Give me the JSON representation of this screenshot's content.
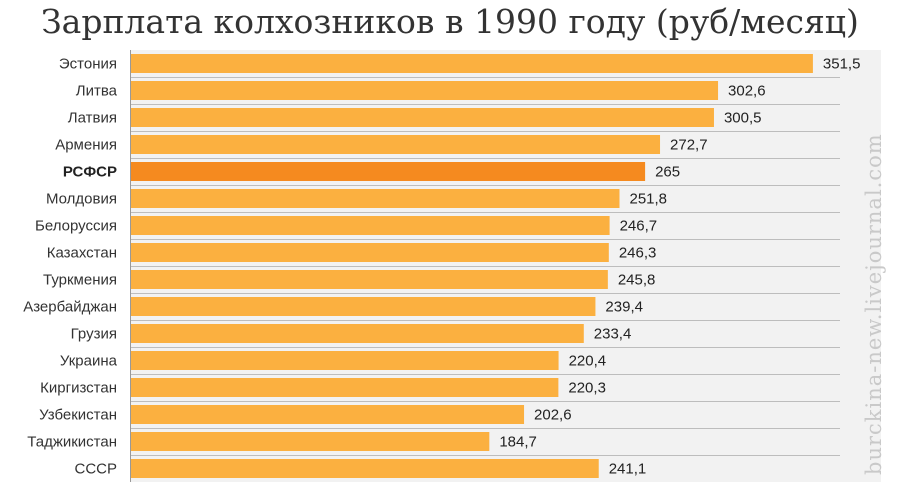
{
  "watermark": "burckina-new.livejournal.com",
  "colors": {
    "bar": "#fbb040",
    "highlight": "#f58a1f",
    "background": "#f2f2f2"
  },
  "chart_data": {
    "type": "bar",
    "orientation": "horizontal",
    "title": "Зарплата колхозников в 1990 году (руб/месяц)",
    "xlabel": "",
    "ylabel": "",
    "xlim": [
      0,
      370
    ],
    "grid": false,
    "highlight": "РСФСР",
    "categories": [
      "Эстония",
      "Литва",
      "Латвия",
      "Армения",
      "РСФСР",
      "Молдовия",
      "Белоруссия",
      "Казахстан",
      "Туркмения",
      "Азербайджан",
      "Грузия",
      "Украина",
      "Киргизстан",
      "Узбекистан",
      "Таджикистан",
      "СССР"
    ],
    "values": [
      351.5,
      302.6,
      300.5,
      272.7,
      265,
      251.8,
      246.7,
      246.3,
      245.8,
      239.4,
      233.4,
      220.4,
      220.3,
      202.6,
      184.7,
      241.1
    ],
    "value_labels": [
      "351,5",
      "302,6",
      "300,5",
      "272,7",
      "265",
      "251,8",
      "246,7",
      "246,3",
      "245,8",
      "239,4",
      "233,4",
      "220,4",
      "220,3",
      "202,6",
      "184,7",
      "241,1"
    ]
  }
}
